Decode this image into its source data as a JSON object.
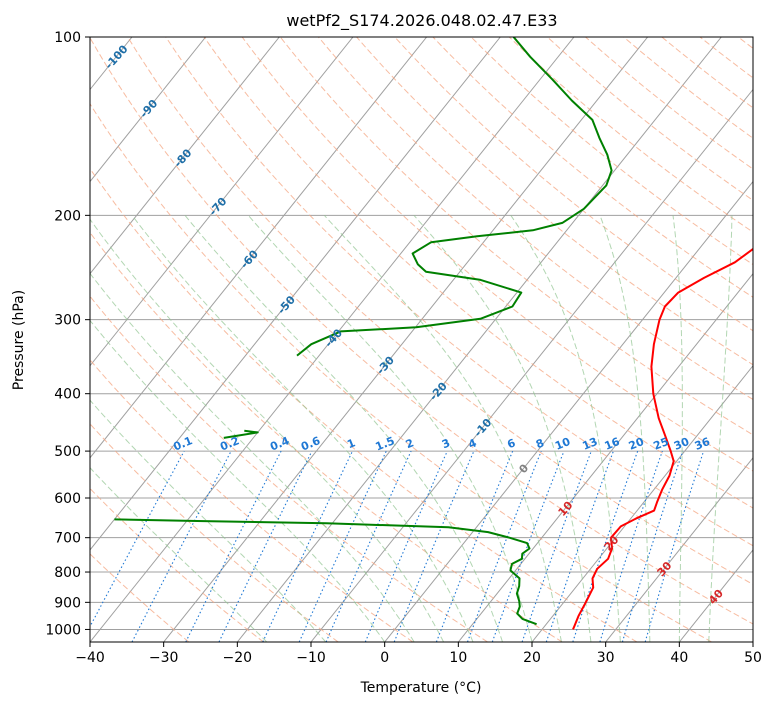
{
  "chart_data": {
    "type": "line",
    "subtype": "skew-t log-p diagram",
    "title": "wetPf2_S174.2026.048.02.47.E33",
    "xlabel": "Temperature (°C)",
    "ylabel": "Pressure (hPa)",
    "xlim": [
      -40,
      50
    ],
    "ylim": [
      1050,
      100
    ],
    "y_scale": "log",
    "grid": true,
    "x_ticks": [
      "−40",
      "−30",
      "−20",
      "−10",
      "0",
      "10",
      "20",
      "30",
      "40",
      "50"
    ],
    "x_tick_values": [
      -40,
      -30,
      -20,
      -10,
      0,
      10,
      20,
      30,
      40,
      50
    ],
    "y_ticks": [
      "100",
      "200",
      "300",
      "400",
      "500",
      "600",
      "700",
      "800",
      "900",
      "1000"
    ],
    "y_tick_values": [
      100,
      200,
      300,
      400,
      500,
      600,
      700,
      800,
      900,
      1000
    ],
    "colors": {
      "temperature": "#ff0000",
      "dewpoint": "#008000",
      "isotherm": "#a0a0a0",
      "dry_adiabat": "#f4a582",
      "moist_adiabat": "#92c592",
      "mixing_ratio": "#1f78d4",
      "adiabat_label": "#1f6fa8",
      "isotherm_label": "#d62728"
    },
    "series": [
      {
        "kind": "temperature",
        "points": [
          {
            "p": 1000,
            "t": 24.2
          },
          {
            "p": 985,
            "t": 24.0
          },
          {
            "p": 950,
            "t": 23.5
          },
          {
            "p": 900,
            "t": 23.0
          },
          {
            "p": 850,
            "t": 22.4
          },
          {
            "p": 820,
            "t": 21.3
          },
          {
            "p": 790,
            "t": 20.9
          },
          {
            "p": 760,
            "t": 21.3
          },
          {
            "p": 730,
            "t": 20.7
          },
          {
            "p": 700,
            "t": 19.4
          },
          {
            "p": 670,
            "t": 19.5
          },
          {
            "p": 650,
            "t": 20.7
          },
          {
            "p": 630,
            "t": 22.3
          },
          {
            "p": 610,
            "t": 21.8
          },
          {
            "p": 580,
            "t": 21.1
          },
          {
            "p": 550,
            "t": 20.6
          },
          {
            "p": 520,
            "t": 19.6
          },
          {
            "p": 500,
            "t": 18.1
          },
          {
            "p": 470,
            "t": 15.6
          },
          {
            "p": 440,
            "t": 12.9
          },
          {
            "p": 400,
            "t": 9.5
          },
          {
            "p": 360,
            "t": 6.3
          },
          {
            "p": 330,
            "t": 4.2
          },
          {
            "p": 300,
            "t": 2.3
          },
          {
            "p": 285,
            "t": 1.6
          },
          {
            "p": 270,
            "t": 1.9
          },
          {
            "p": 255,
            "t": 3.8
          },
          {
            "p": 240,
            "t": 6.3
          },
          {
            "p": 225,
            "t": 7.6
          },
          {
            "p": 210,
            "t": 7.2
          },
          {
            "p": 195,
            "t": 6.5
          },
          {
            "p": 180,
            "t": 5.9
          },
          {
            "p": 165,
            "t": 5.9
          },
          {
            "p": 150,
            "t": 6.5
          },
          {
            "p": 135,
            "t": 6.9
          },
          {
            "p": 120,
            "t": 7.8
          },
          {
            "p": 110,
            "t": 8.6
          },
          {
            "p": 100,
            "t": 9.4
          }
        ]
      },
      {
        "kind": "dewpoint",
        "points": [
          {
            "p": 980,
            "t": 18.7
          },
          {
            "p": 960,
            "t": 16.2
          },
          {
            "p": 940,
            "t": 14.9
          },
          {
            "p": 915,
            "t": 14.5
          },
          {
            "p": 895,
            "t": 13.8
          },
          {
            "p": 870,
            "t": 12.7
          },
          {
            "p": 845,
            "t": 12.2
          },
          {
            "p": 820,
            "t": 11.4
          },
          {
            "p": 795,
            "t": 9.3
          },
          {
            "p": 775,
            "t": 8.8
          },
          {
            "p": 760,
            "t": 9.6
          },
          {
            "p": 745,
            "t": 9.1
          },
          {
            "p": 730,
            "t": 9.5
          },
          {
            "p": 715,
            "t": 8.6
          },
          {
            "p": 700,
            "t": 5.6
          },
          {
            "p": 685,
            "t": 2.1
          },
          {
            "p": 672,
            "t": -3.8
          },
          {
            "p": 662,
            "t": -20.8
          },
          {
            "p": 656,
            "t": -38.6
          },
          {
            "p": 652,
            "t": -50.0
          }
        ]
      },
      {
        "kind": "dewpoint",
        "points": [
          {
            "p": 475,
            "t": -44.0
          },
          {
            "p": 465,
            "t": -40.0
          },
          {
            "p": 462,
            "t": -42.0
          }
        ]
      },
      {
        "kind": "dewpoint",
        "points": [
          {
            "p": 345,
            "t": -43.0
          },
          {
            "p": 330,
            "t": -42.3
          },
          {
            "p": 314,
            "t": -39.7
          },
          {
            "p": 309,
            "t": -29.9
          },
          {
            "p": 299,
            "t": -22.1
          },
          {
            "p": 285,
            "t": -19.1
          },
          {
            "p": 270,
            "t": -19.4
          },
          {
            "p": 257,
            "t": -26.3
          },
          {
            "p": 249,
            "t": -34.6
          },
          {
            "p": 242,
            "t": -36.5
          },
          {
            "p": 232,
            "t": -38.4
          },
          {
            "p": 222,
            "t": -37.1
          },
          {
            "p": 217,
            "t": -31.5
          },
          {
            "p": 212,
            "t": -24.6
          },
          {
            "p": 206,
            "t": -21.4
          },
          {
            "p": 195,
            "t": -20.0
          },
          {
            "p": 178,
            "t": -19.5
          },
          {
            "p": 168,
            "t": -20.4
          },
          {
            "p": 158,
            "t": -22.7
          },
          {
            "p": 148,
            "t": -25.6
          },
          {
            "p": 138,
            "t": -28.5
          },
          {
            "p": 128,
            "t": -33.4
          },
          {
            "p": 118,
            "t": -38.3
          },
          {
            "p": 108,
            "t": -43.8
          },
          {
            "p": 100,
            "t": -48.2
          }
        ]
      }
    ],
    "adiabat_labels": [
      "-100",
      "-90",
      "-80",
      "-70",
      "-60",
      "-50",
      "-40",
      "-30",
      "-20",
      "-10"
    ],
    "mixing_ratio_labels": [
      "0.1",
      "0.2",
      "0.4",
      "0.6",
      "1",
      "1.5",
      "2",
      "3",
      "4",
      "6",
      "8",
      "10",
      "13",
      "16",
      "20",
      "25",
      "30",
      "36"
    ],
    "isotherm_labels": [
      "0",
      "10",
      "20",
      "30",
      "40"
    ]
  }
}
